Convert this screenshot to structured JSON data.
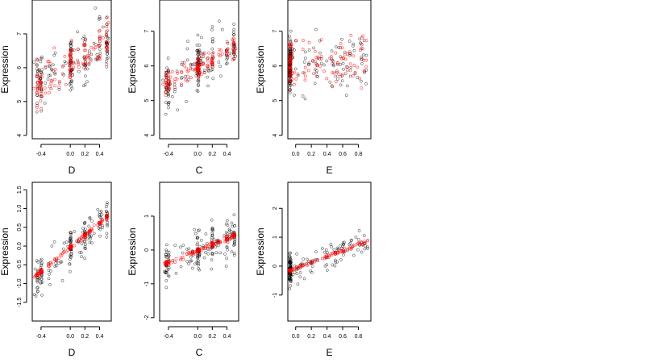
{
  "colors": {
    "observed": "#000000",
    "fitted": "#ff0000",
    "background": "#ffffff"
  },
  "chart_data": [
    {
      "type": "scatter",
      "xlabel": "D",
      "ylabel": "Expression",
      "xlim": [
        -0.52,
        0.56
      ],
      "ylim": [
        3.9,
        8.0
      ],
      "xticks": [
        -0.4,
        0.0,
        0.2,
        0.4
      ],
      "xtick_labels": [
        "-0.4",
        "0.0",
        "0.2",
        "0.4"
      ],
      "yticks": [
        4,
        5,
        6,
        7
      ],
      "ytick_labels": [
        "4",
        "5",
        "6",
        "7"
      ],
      "observed_range": [
        -0.5,
        0.52
      ],
      "y_trend": [
        5.4,
        6.9
      ],
      "y_spread": 0.75,
      "fitted_noise": 0.5,
      "dense_left": false
    },
    {
      "type": "scatter",
      "xlabel": "C",
      "ylabel": "Expression",
      "xlim": [
        -0.52,
        0.56
      ],
      "ylim": [
        3.9,
        7.9
      ],
      "xticks": [
        -0.4,
        0.0,
        0.2,
        0.4
      ],
      "xtick_labels": [
        "-0.4",
        "0.0",
        "0.2",
        "0.4"
      ],
      "yticks": [
        4,
        5,
        6,
        7
      ],
      "ytick_labels": [
        "4",
        "5",
        "6",
        "7"
      ],
      "observed_range": [
        -0.48,
        0.52
      ],
      "y_trend": [
        5.45,
        6.5
      ],
      "y_spread": 0.7,
      "fitted_noise": 0.3,
      "dense_left": false
    },
    {
      "type": "scatter",
      "xlabel": "E",
      "ylabel": "Expression",
      "xlim": [
        -0.1,
        0.96
      ],
      "ylim": [
        3.9,
        7.9
      ],
      "xticks": [
        0.0,
        0.2,
        0.4,
        0.6,
        0.8
      ],
      "xtick_labels": [
        "0.0",
        "0.2",
        "0.4",
        "0.6",
        "0.8"
      ],
      "yticks": [
        4,
        5,
        6,
        7
      ],
      "ytick_labels": [
        "4",
        "5",
        "6",
        "7"
      ],
      "observed_range": [
        -0.08,
        0.92
      ],
      "y_trend": [
        6.0,
        6.2
      ],
      "y_spread": 0.7,
      "fitted_noise": 0.6,
      "dense_left": true
    },
    {
      "type": "scatter",
      "xlabel": "D",
      "ylabel": "Expression",
      "xlim": [
        -0.52,
        0.56
      ],
      "ylim": [
        -2.0,
        1.7
      ],
      "xticks": [
        -0.4,
        0.0,
        0.2,
        0.4
      ],
      "xtick_labels": [
        "-0.4",
        "0.0",
        "0.2",
        "0.4"
      ],
      "yticks": [
        -1.5,
        -1.0,
        -0.5,
        0.0,
        0.5,
        1.0,
        1.5
      ],
      "ytick_labels": [
        "-1.5",
        "-1.0",
        "-0.5",
        "0.0",
        "0.5",
        "1.0",
        "1.5"
      ],
      "observed_range": [
        -0.5,
        0.52
      ],
      "y_trend": [
        -0.85,
        0.8
      ],
      "y_spread": 0.45,
      "fitted_noise": 0.05,
      "dense_left": false
    },
    {
      "type": "scatter",
      "xlabel": "C",
      "ylabel": "Expression",
      "xlim": [
        -0.52,
        0.56
      ],
      "ylim": [
        -2.1,
        2.0
      ],
      "xticks": [
        -0.4,
        0.0,
        0.2,
        0.4
      ],
      "xtick_labels": [
        "-0.4",
        "0.0",
        "0.2",
        "0.4"
      ],
      "yticks": [
        -2,
        -1,
        0,
        1
      ],
      "ytick_labels": [
        "-2",
        "-1",
        "0",
        "1"
      ],
      "observed_range": [
        -0.48,
        0.52
      ],
      "y_trend": [
        -0.45,
        0.45
      ],
      "y_spread": 0.55,
      "fitted_noise": 0.06,
      "dense_left": false
    },
    {
      "type": "scatter",
      "xlabel": "E",
      "ylabel": "Expression",
      "xlim": [
        -0.1,
        0.96
      ],
      "ylim": [
        -1.9,
        2.9
      ],
      "xticks": [
        0.0,
        0.2,
        0.4,
        0.6,
        0.8
      ],
      "xtick_labels": [
        "0.0",
        "0.2",
        "0.4",
        "0.6",
        "0.8"
      ],
      "yticks": [
        -1,
        0,
        1,
        2
      ],
      "ytick_labels": [
        "-1",
        "0",
        "1",
        "2"
      ],
      "observed_range": [
        -0.08,
        0.92
      ],
      "y_trend": [
        -0.15,
        0.85
      ],
      "y_spread": 0.45,
      "fitted_noise": 0.05,
      "dense_left": true
    }
  ]
}
